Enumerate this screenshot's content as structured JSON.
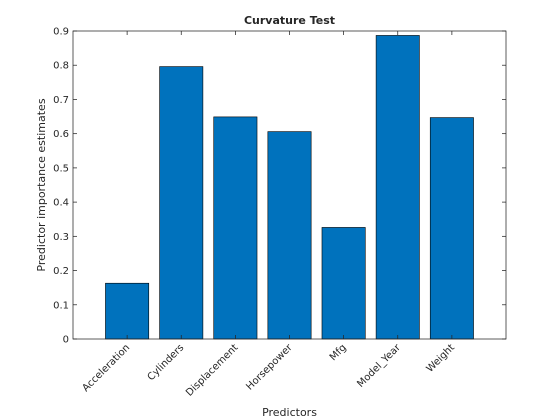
{
  "chart_data": {
    "type": "bar",
    "title": "Curvature Test",
    "xlabel": "Predictors",
    "ylabel": "Predictor importance estimates",
    "categories": [
      "Acceleration",
      "Cylinders",
      "Displacement",
      "Horsepower",
      "Mfg",
      "Model_Year",
      "Weight"
    ],
    "values": [
      0.163,
      0.796,
      0.649,
      0.606,
      0.326,
      0.887,
      0.647
    ],
    "ylim": [
      0,
      0.9
    ],
    "yticks": [
      "0",
      "0.1",
      "0.2",
      "0.3",
      "0.4",
      "0.5",
      "0.6",
      "0.7",
      "0.8",
      "0.9"
    ],
    "grid": false,
    "bar_color": "#0072BD"
  }
}
